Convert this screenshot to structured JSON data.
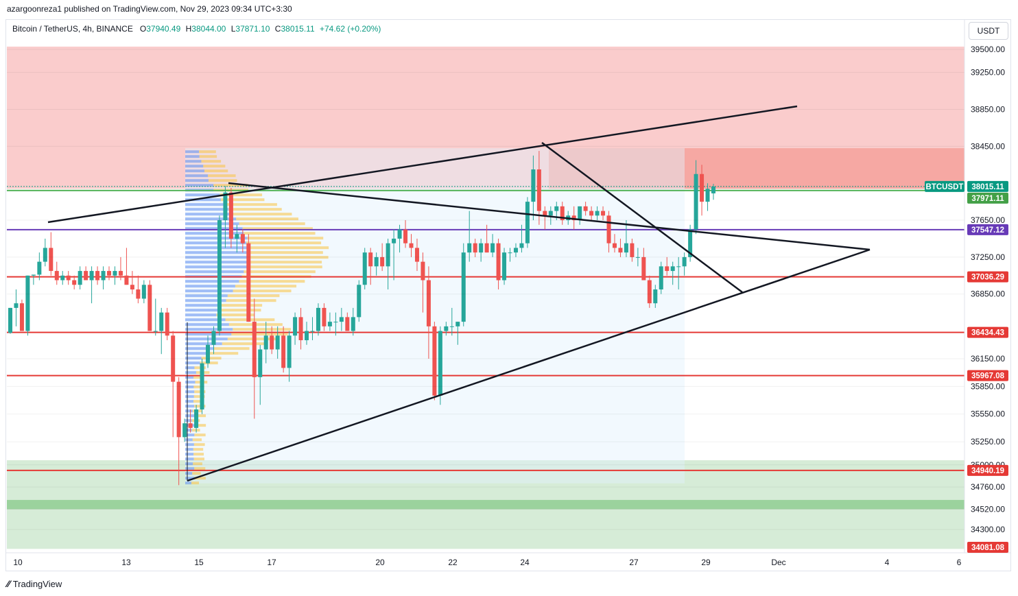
{
  "header": {
    "publisher": "azargoonreza1 published on TradingView.com, Nov 29, 2023 09:34 UTC+3:30"
  },
  "symbol_bar": {
    "name": "Bitcoin / TetherUS, 4h, BINANCE",
    "open_label": "O",
    "open": "37940.49",
    "high_label": "H",
    "high": "38044.00",
    "low_label": "L",
    "low": "37871.10",
    "close_label": "C",
    "close": "38015.11",
    "change": "+74.62 (+0.20%)"
  },
  "currency": "USDT",
  "footer": {
    "brand": "TradingView",
    "logo_icon": "tradingview-logo-icon"
  },
  "colors": {
    "up": "#26a69a",
    "down": "#ef5350",
    "resistance_zone": "#f8bbbb",
    "support_zone": "#c8e6c9",
    "red_line": "#e53935",
    "purple_line": "#673ab7",
    "green_line": "#4caf50",
    "trend_line": "#131722"
  },
  "chart_data": {
    "type": "candlestick",
    "symbol": "BTCUSDT",
    "timeframe": "4h",
    "y_axis": {
      "ticks": [
        39500,
        39250,
        38850,
        38450,
        37650,
        37250,
        36850,
        36150,
        35850,
        35550,
        35250,
        35000,
        34760,
        34520,
        34300
      ],
      "range": [
        34000,
        39650
      ]
    },
    "x_axis": {
      "ticks": [
        "10",
        "13",
        "15",
        "17",
        "20",
        "22",
        "24",
        "27",
        "29",
        "Dec",
        "4",
        "6"
      ]
    },
    "price_labels": [
      {
        "text": "BTCUSDT",
        "value": 38015.11,
        "color": "#089981"
      },
      {
        "text": "38015.11",
        "value": 38015.11,
        "color": "#089981"
      },
      {
        "text": "37971.11",
        "value": 37971.11,
        "color": "#43a047"
      },
      {
        "text": "37547.12",
        "value": 37547.12,
        "color": "#673ab7"
      },
      {
        "text": "37036.29",
        "value": 37036.29,
        "color": "#e53935"
      },
      {
        "text": "36434.43",
        "value": 36434.43,
        "color": "#e53935"
      },
      {
        "text": "35967.08",
        "value": 35967.08,
        "color": "#e53935"
      },
      {
        "text": "34940.19",
        "value": 34940.19,
        "color": "#e53935"
      },
      {
        "text": "34081.08",
        "value": 34081.08,
        "color": "#e53935"
      }
    ],
    "horizontal_lines": [
      {
        "value": 37971.11,
        "color": "#4caf50"
      },
      {
        "value": 37547.12,
        "color": "#673ab7"
      },
      {
        "value": 37036.29,
        "color": "#e53935"
      },
      {
        "value": 36434.43,
        "color": "#e53935"
      },
      {
        "value": 35967.08,
        "color": "#e53935"
      },
      {
        "value": 34940.19,
        "color": "#e53935"
      }
    ],
    "zones": [
      {
        "kind": "resistance",
        "from": 37990,
        "to": 39530
      },
      {
        "kind": "support",
        "from": 34090,
        "to": 35050
      }
    ],
    "candles": [
      {
        "o": 36430,
        "h": 36700,
        "l": 36420,
        "c": 36700
      },
      {
        "o": 36700,
        "h": 36900,
        "l": 36500,
        "c": 36750
      },
      {
        "o": 36750,
        "h": 36790,
        "l": 36450,
        "c": 36450
      },
      {
        "o": 36450,
        "h": 37050,
        "l": 36400,
        "c": 37050
      },
      {
        "o": 37050,
        "h": 37060,
        "l": 36950,
        "c": 37060
      },
      {
        "o": 37060,
        "h": 37300,
        "l": 37000,
        "c": 37200
      },
      {
        "o": 37200,
        "h": 37450,
        "l": 37150,
        "c": 37350
      },
      {
        "o": 37350,
        "h": 37520,
        "l": 37050,
        "c": 37100
      },
      {
        "o": 37100,
        "h": 37200,
        "l": 36950,
        "c": 37000
      },
      {
        "o": 37000,
        "h": 37100,
        "l": 36950,
        "c": 37050
      },
      {
        "o": 37050,
        "h": 37100,
        "l": 36950,
        "c": 37000
      },
      {
        "o": 37000,
        "h": 37050,
        "l": 36900,
        "c": 36950
      },
      {
        "o": 36950,
        "h": 37150,
        "l": 36900,
        "c": 37100
      },
      {
        "o": 37100,
        "h": 37150,
        "l": 37000,
        "c": 37000
      },
      {
        "o": 37000,
        "h": 37150,
        "l": 36750,
        "c": 37100
      },
      {
        "o": 37100,
        "h": 37150,
        "l": 36950,
        "c": 37000
      },
      {
        "o": 37000,
        "h": 37150,
        "l": 36900,
        "c": 37100
      },
      {
        "o": 37100,
        "h": 37150,
        "l": 37000,
        "c": 37050
      },
      {
        "o": 37050,
        "h": 37150,
        "l": 36950,
        "c": 37100
      },
      {
        "o": 37100,
        "h": 37250,
        "l": 37000,
        "c": 37050
      },
      {
        "o": 37050,
        "h": 37350,
        "l": 36950,
        "c": 36950
      },
      {
        "o": 36950,
        "h": 37100,
        "l": 36850,
        "c": 36900
      },
      {
        "o": 36900,
        "h": 37050,
        "l": 36750,
        "c": 36800
      },
      {
        "o": 36800,
        "h": 37000,
        "l": 36750,
        "c": 36950
      },
      {
        "o": 36950,
        "h": 37000,
        "l": 36450,
        "c": 36450
      },
      {
        "o": 36450,
        "h": 36800,
        "l": 36400,
        "c": 36450
      },
      {
        "o": 36450,
        "h": 36700,
        "l": 36200,
        "c": 36650
      },
      {
        "o": 36650,
        "h": 36700,
        "l": 36350,
        "c": 36400
      },
      {
        "o": 36400,
        "h": 36450,
        "l": 35300,
        "c": 35900
      },
      {
        "o": 35900,
        "h": 35950,
        "l": 34780,
        "c": 35300
      },
      {
        "o": 35300,
        "h": 35500,
        "l": 35250,
        "c": 35450
      },
      {
        "o": 35450,
        "h": 35600,
        "l": 35350,
        "c": 35400
      },
      {
        "o": 35400,
        "h": 35650,
        "l": 35350,
        "c": 35600
      },
      {
        "o": 35600,
        "h": 36150,
        "l": 35550,
        "c": 36100
      },
      {
        "o": 36100,
        "h": 36400,
        "l": 36050,
        "c": 36300
      },
      {
        "o": 36300,
        "h": 36500,
        "l": 36200,
        "c": 36450
      },
      {
        "o": 36450,
        "h": 37700,
        "l": 36400,
        "c": 37650
      },
      {
        "o": 37650,
        "h": 38020,
        "l": 37350,
        "c": 37950
      },
      {
        "o": 37950,
        "h": 38000,
        "l": 37350,
        "c": 37450
      },
      {
        "o": 37450,
        "h": 37600,
        "l": 37300,
        "c": 37500
      },
      {
        "o": 37500,
        "h": 37550,
        "l": 37300,
        "c": 37400
      },
      {
        "o": 37400,
        "h": 37500,
        "l": 36550,
        "c": 36550
      },
      {
        "o": 36550,
        "h": 36800,
        "l": 35500,
        "c": 35950
      },
      {
        "o": 35950,
        "h": 36300,
        "l": 35650,
        "c": 36250
      },
      {
        "o": 36250,
        "h": 36550,
        "l": 36100,
        "c": 36400
      },
      {
        "o": 36400,
        "h": 36500,
        "l": 36200,
        "c": 36250
      },
      {
        "o": 36250,
        "h": 36500,
        "l": 36150,
        "c": 36400
      },
      {
        "o": 36400,
        "h": 36500,
        "l": 36000,
        "c": 36050
      },
      {
        "o": 36050,
        "h": 36450,
        "l": 35900,
        "c": 36400
      },
      {
        "o": 36400,
        "h": 36650,
        "l": 36300,
        "c": 36600
      },
      {
        "o": 36600,
        "h": 36700,
        "l": 36250,
        "c": 36350
      },
      {
        "o": 36350,
        "h": 36550,
        "l": 36300,
        "c": 36450
      },
      {
        "o": 36450,
        "h": 36600,
        "l": 36350,
        "c": 36450
      },
      {
        "o": 36450,
        "h": 36750,
        "l": 36400,
        "c": 36700
      },
      {
        "o": 36700,
        "h": 36750,
        "l": 36450,
        "c": 36500
      },
      {
        "o": 36500,
        "h": 36650,
        "l": 36450,
        "c": 36550
      },
      {
        "o": 36550,
        "h": 36650,
        "l": 36400,
        "c": 36550
      },
      {
        "o": 36550,
        "h": 36700,
        "l": 36450,
        "c": 36600
      },
      {
        "o": 36600,
        "h": 36650,
        "l": 36450,
        "c": 36450
      },
      {
        "o": 36450,
        "h": 36700,
        "l": 36400,
        "c": 36600
      },
      {
        "o": 36600,
        "h": 37000,
        "l": 36550,
        "c": 36950
      },
      {
        "o": 36950,
        "h": 37350,
        "l": 36900,
        "c": 37300
      },
      {
        "o": 37300,
        "h": 37350,
        "l": 36950,
        "c": 37150
      },
      {
        "o": 37150,
        "h": 37300,
        "l": 37050,
        "c": 37250
      },
      {
        "o": 37250,
        "h": 37400,
        "l": 37100,
        "c": 37150
      },
      {
        "o": 37150,
        "h": 37450,
        "l": 36900,
        "c": 37400
      },
      {
        "o": 37400,
        "h": 37550,
        "l": 37000,
        "c": 37450
      },
      {
        "o": 37450,
        "h": 37600,
        "l": 37300,
        "c": 37550
      },
      {
        "o": 37550,
        "h": 37650,
        "l": 37350,
        "c": 37400
      },
      {
        "o": 37400,
        "h": 37500,
        "l": 37250,
        "c": 37350
      },
      {
        "o": 37350,
        "h": 37450,
        "l": 37100,
        "c": 37200
      },
      {
        "o": 37200,
        "h": 37300,
        "l": 36650,
        "c": 37000
      },
      {
        "o": 37000,
        "h": 37150,
        "l": 36150,
        "c": 36500
      },
      {
        "o": 36500,
        "h": 36550,
        "l": 35700,
        "c": 35750
      },
      {
        "o": 35750,
        "h": 36500,
        "l": 35650,
        "c": 36450
      },
      {
        "o": 36450,
        "h": 36550,
        "l": 36400,
        "c": 36500
      },
      {
        "o": 36500,
        "h": 36700,
        "l": 36400,
        "c": 36500
      },
      {
        "o": 36500,
        "h": 36550,
        "l": 36300,
        "c": 36550
      },
      {
        "o": 36550,
        "h": 37400,
        "l": 36500,
        "c": 37300
      },
      {
        "o": 37300,
        "h": 37750,
        "l": 37200,
        "c": 37400
      },
      {
        "o": 37400,
        "h": 37450,
        "l": 37250,
        "c": 37300
      },
      {
        "o": 37300,
        "h": 37450,
        "l": 37200,
        "c": 37400
      },
      {
        "o": 37400,
        "h": 37600,
        "l": 37300,
        "c": 37300
      },
      {
        "o": 37300,
        "h": 37500,
        "l": 37250,
        "c": 37400
      },
      {
        "o": 37400,
        "h": 37450,
        "l": 36900,
        "c": 37000
      },
      {
        "o": 37000,
        "h": 37350,
        "l": 36950,
        "c": 37300
      },
      {
        "o": 37300,
        "h": 37350,
        "l": 37200,
        "c": 37300
      },
      {
        "o": 37300,
        "h": 37400,
        "l": 37250,
        "c": 37350
      },
      {
        "o": 37350,
        "h": 37600,
        "l": 37300,
        "c": 37400
      },
      {
        "o": 37400,
        "h": 37900,
        "l": 37350,
        "c": 37850
      },
      {
        "o": 37850,
        "h": 38350,
        "l": 37650,
        "c": 38200
      },
      {
        "o": 38200,
        "h": 38400,
        "l": 37600,
        "c": 37750
      },
      {
        "o": 37750,
        "h": 37800,
        "l": 37550,
        "c": 37700
      },
      {
        "o": 37700,
        "h": 37800,
        "l": 37600,
        "c": 37750
      },
      {
        "o": 37750,
        "h": 37850,
        "l": 37650,
        "c": 37800
      },
      {
        "o": 37800,
        "h": 37850,
        "l": 37600,
        "c": 37650
      },
      {
        "o": 37650,
        "h": 37750,
        "l": 37600,
        "c": 37700
      },
      {
        "o": 37700,
        "h": 37800,
        "l": 37550,
        "c": 37650
      },
      {
        "o": 37650,
        "h": 37800,
        "l": 37600,
        "c": 37800
      },
      {
        "o": 37800,
        "h": 37850,
        "l": 37700,
        "c": 37750
      },
      {
        "o": 37750,
        "h": 37800,
        "l": 37650,
        "c": 37700
      },
      {
        "o": 37700,
        "h": 37800,
        "l": 37650,
        "c": 37750
      },
      {
        "o": 37750,
        "h": 37800,
        "l": 37650,
        "c": 37700
      },
      {
        "o": 37700,
        "h": 37750,
        "l": 37300,
        "c": 37400
      },
      {
        "o": 37400,
        "h": 37500,
        "l": 37300,
        "c": 37350
      },
      {
        "o": 37350,
        "h": 37450,
        "l": 37250,
        "c": 37300
      },
      {
        "o": 37300,
        "h": 37650,
        "l": 37250,
        "c": 37400
      },
      {
        "o": 37400,
        "h": 37450,
        "l": 37200,
        "c": 37250
      },
      {
        "o": 37250,
        "h": 37350,
        "l": 37150,
        "c": 37250
      },
      {
        "o": 37250,
        "h": 37350,
        "l": 37000,
        "c": 37000
      },
      {
        "o": 37000,
        "h": 37050,
        "l": 36700,
        "c": 36750
      },
      {
        "o": 36750,
        "h": 36950,
        "l": 36700,
        "c": 36900
      },
      {
        "o": 36900,
        "h": 37200,
        "l": 36850,
        "c": 37150
      },
      {
        "o": 37150,
        "h": 37250,
        "l": 37050,
        "c": 37100
      },
      {
        "o": 37100,
        "h": 37200,
        "l": 36950,
        "c": 37150
      },
      {
        "o": 37150,
        "h": 37250,
        "l": 36900,
        "c": 37150
      },
      {
        "o": 37150,
        "h": 37300,
        "l": 37050,
        "c": 37250
      },
      {
        "o": 37250,
        "h": 37600,
        "l": 37200,
        "c": 37550
      },
      {
        "o": 37550,
        "h": 38300,
        "l": 37500,
        "c": 38150
      },
      {
        "o": 38150,
        "h": 38250,
        "l": 37700,
        "c": 37850
      },
      {
        "o": 37850,
        "h": 38050,
        "l": 37750,
        "c": 37990
      },
      {
        "o": 37940.49,
        "h": 38044,
        "l": 37871.1,
        "c": 38015.11
      }
    ],
    "drawings": {
      "ascending_resistance": [
        [
          37550,
          38900
        ]
      ],
      "channel_top_left_price": 37550,
      "triangle_apex_price": 37250
    }
  }
}
